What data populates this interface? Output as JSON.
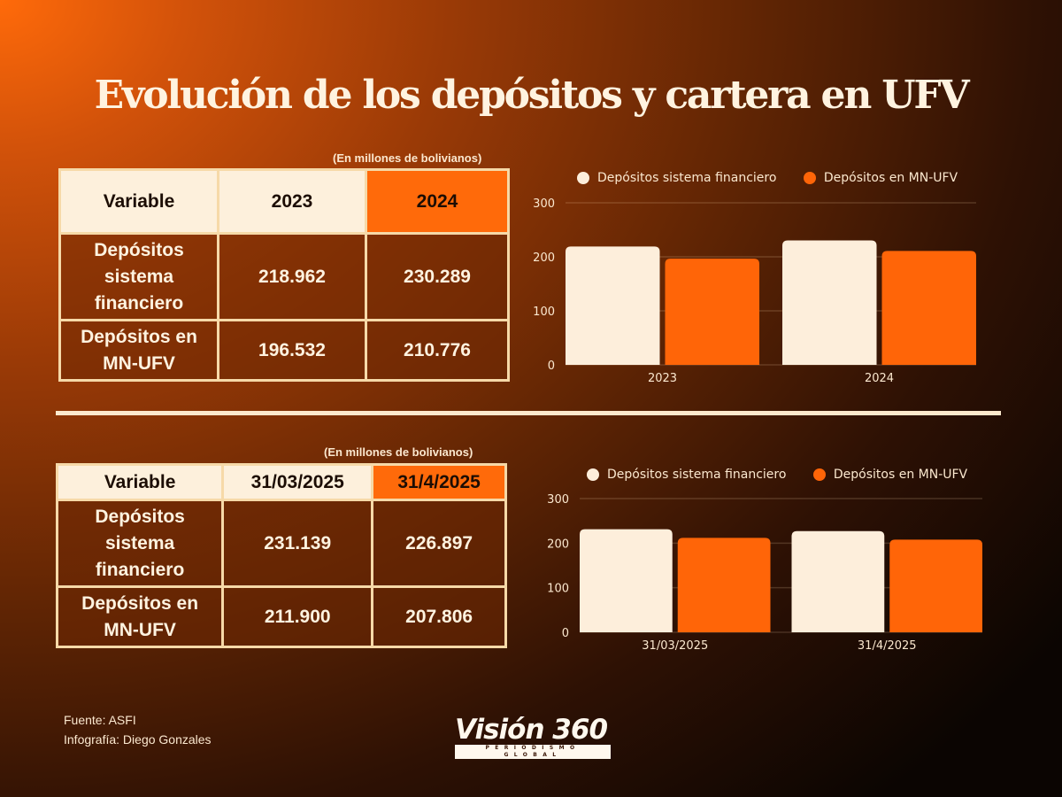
{
  "title": "Evolución de los depósitos y cartera en UFV",
  "colors": {
    "series_light": "#fdeedb",
    "series_orange": "#ff6508",
    "header_highlight": "#ff6a0a",
    "divider": "#fde9cd"
  },
  "tables": [
    {
      "unit_note": "(En millones de bolivianos)",
      "headers": [
        "Variable",
        "2023",
        "2024"
      ],
      "rows": [
        {
          "label": "Depósitos sistema financiero",
          "label_lines": [
            "Depósitos",
            "sistema",
            "financiero"
          ],
          "values": [
            "218.962",
            "230.289"
          ]
        },
        {
          "label": "Depósitos en MN-UFV",
          "label_lines": [
            "Depósitos en",
            "MN-UFV"
          ],
          "values": [
            "196.532",
            "210.776"
          ]
        }
      ]
    },
    {
      "unit_note": "(En millones de bolivianos)",
      "headers": [
        "Variable",
        "31/03/2025",
        "31/4/2025"
      ],
      "rows": [
        {
          "label": "Depósitos sistema financiero",
          "label_lines": [
            "Depósitos",
            "sistema",
            "financiero"
          ],
          "values": [
            "231.139",
            "226.897"
          ]
        },
        {
          "label": "Depósitos en MN-UFV",
          "label_lines": [
            "Depósitos en",
            "MN-UFV"
          ],
          "values": [
            "211.900",
            "207.806"
          ]
        }
      ]
    }
  ],
  "chart_data": [
    {
      "type": "bar",
      "title": "",
      "xlabel": "",
      "ylabel": "",
      "categories": [
        "2023",
        "2024"
      ],
      "series": [
        {
          "name": "Depósitos sistema financiero",
          "values": [
            218.962,
            230.289
          ],
          "color": "#fdeedb"
        },
        {
          "name": "Depósitos en MN-UFV",
          "values": [
            196.532,
            210.776
          ],
          "color": "#ff6508"
        }
      ],
      "ylim": [
        0,
        300
      ],
      "yticks": [
        0,
        100,
        200,
        300
      ],
      "grid": true,
      "legend": "top"
    },
    {
      "type": "bar",
      "title": "",
      "xlabel": "",
      "ylabel": "",
      "categories": [
        "31/03/2025",
        "31/4/2025"
      ],
      "series": [
        {
          "name": "Depósitos sistema financiero",
          "values": [
            231.139,
            226.897
          ],
          "color": "#fdeedb"
        },
        {
          "name": "Depósitos en MN-UFV",
          "values": [
            211.9,
            207.806
          ],
          "color": "#ff6508"
        }
      ],
      "ylim": [
        0,
        300
      ],
      "yticks": [
        0,
        100,
        200,
        300
      ],
      "grid": true,
      "legend": "top"
    }
  ],
  "footer": {
    "source": "Fuente: ASFI",
    "credit": "Infografía: Diego Gonzales"
  },
  "logo": {
    "brand": "Visión 360",
    "tagline": "PERIODISMO GLOBAL"
  }
}
